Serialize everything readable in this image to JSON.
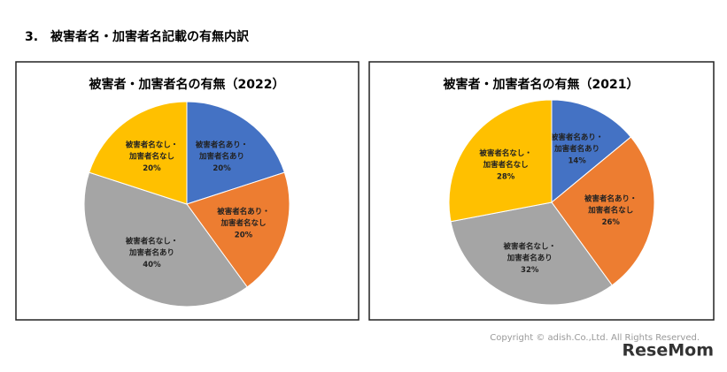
{
  "heading": "3.　被害者名・加害者名記載の有無内訳",
  "chart_data": [
    {
      "type": "pie",
      "title": "被害者・加害者名の有無（2022）",
      "categories": [
        "被害者名あり・加害者名あり",
        "被害者名あり・加害者名なし",
        "被害者名なし・加害者名あり",
        "被害者名なし・加害者名なし"
      ],
      "values": [
        20,
        20,
        40,
        20
      ],
      "value_labels": [
        "20%",
        "20%",
        "40%",
        "20%"
      ],
      "colors": [
        "#4472c4",
        "#ed7d31",
        "#a5a5a5",
        "#ffc000"
      ]
    },
    {
      "type": "pie",
      "title": "被害者・加害者名の有無（2021）",
      "categories": [
        "被害者名あり・加害者名あり",
        "被害者名あり・加害者名なし",
        "被害者名なし・加害者名あり",
        "被害者名なし・加害者名なし"
      ],
      "values": [
        14,
        26,
        32,
        28
      ],
      "value_labels": [
        "14%",
        "26%",
        "32%",
        "28%"
      ],
      "colors": [
        "#4472c4",
        "#ed7d31",
        "#a5a5a5",
        "#ffc000"
      ]
    }
  ],
  "copyright": "Copyright © adish.Co.,Ltd.  All Rights Reserved.",
  "watermark": "ReseMom"
}
